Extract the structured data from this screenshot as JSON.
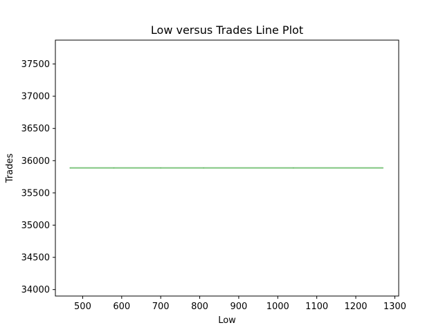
{
  "chart_data": {
    "type": "line",
    "title": "Low versus Trades Line Plot",
    "xlabel": "Low",
    "ylabel": "Trades",
    "xlim": [
      430,
      1310
    ],
    "ylim": [
      33900,
      37870
    ],
    "xticks": [
      500,
      600,
      700,
      800,
      900,
      1000,
      1100,
      1200,
      1300
    ],
    "yticks": [
      34000,
      34500,
      35000,
      35500,
      36000,
      36500,
      37000,
      37500
    ],
    "grid": false,
    "series": [
      {
        "color": "#2ca02c",
        "opacity": 0.6,
        "x": [
          467,
          580,
          700,
          810,
          1040,
          1270
        ],
        "y": [
          35887,
          35887,
          35887,
          35887,
          35887,
          35887
        ]
      }
    ]
  }
}
